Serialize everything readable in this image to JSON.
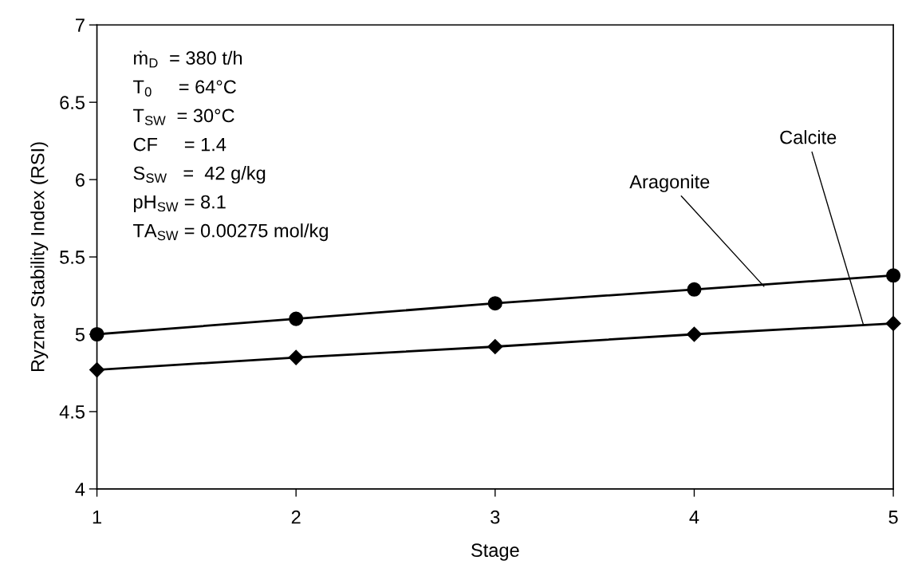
{
  "chart_data": {
    "type": "line",
    "xlabel": "Stage",
    "ylabel": "Ryznar Stability Index (RSI)",
    "x": [
      1,
      2,
      3,
      4,
      5
    ],
    "series": [
      {
        "color": "#000000",
        "marker": "circle",
        "values": [
          5.0,
          5.1,
          5.2,
          5.29,
          5.38
        ]
      },
      {
        "color": "#000000",
        "marker": "diamond",
        "values": [
          4.77,
          4.85,
          4.92,
          5.0,
          5.07
        ]
      }
    ],
    "xlim": [
      1,
      5
    ],
    "ylim": [
      4,
      7
    ],
    "xticks": [
      1,
      2,
      3,
      4,
      5
    ],
    "yticks": [
      4,
      4.5,
      5,
      5.5,
      6,
      6.5,
      7
    ],
    "grid": false,
    "legend": false,
    "line_style": "solid",
    "annotations": [
      "ṁ$_{D}$  = 380 t/h",
      "T$_{0}$     = 64°C",
      "T$_{SW}$  = 30°C",
      "CF     = 1.4",
      "S$_{SW}$   =  42 g/kg",
      "pH$_{SW}$ = 8.1",
      "TA$_{SW}$ = 0.00275 mol/kg",
      {
        "text": "Aragonite",
        "x": 4.35,
        "y": 5.31
      },
      {
        "text": "Calcite",
        "x": 4.85,
        "y": 5.06
      }
    ]
  }
}
